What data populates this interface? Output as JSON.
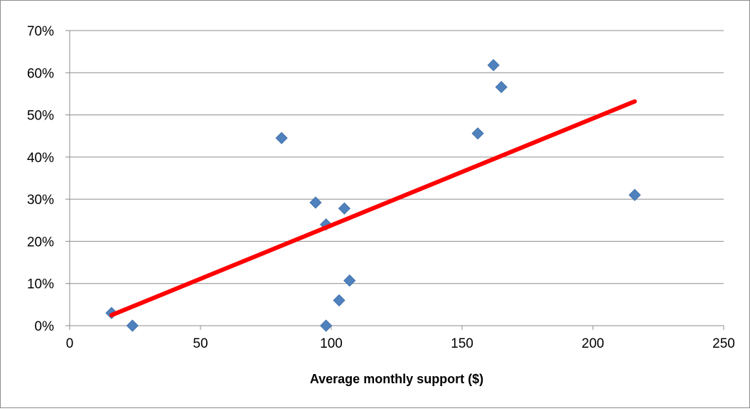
{
  "chart_data": {
    "type": "scatter",
    "xlabel": "Average monthly support ($)",
    "ylabel": "",
    "xlim": [
      0,
      250
    ],
    "ylim": [
      0,
      0.7
    ],
    "x_ticks": [
      0,
      50,
      100,
      150,
      200,
      250
    ],
    "x_tick_labels": [
      "0",
      "50",
      "100",
      "150",
      "200",
      "250"
    ],
    "y_ticks": [
      0,
      0.1,
      0.2,
      0.3,
      0.4,
      0.5,
      0.6,
      0.7
    ],
    "y_tick_labels": [
      "0%",
      "10%",
      "20%",
      "30%",
      "40%",
      "50%",
      "60%",
      "70%"
    ],
    "grid": "horizontal",
    "legend": "none",
    "series": [
      {
        "marker": "diamond",
        "color": "#4f81bd",
        "points": [
          {
            "x": 16,
            "y": 0.03
          },
          {
            "x": 24,
            "y": 0.0
          },
          {
            "x": 81,
            "y": 0.445
          },
          {
            "x": 94,
            "y": 0.292
          },
          {
            "x": 98,
            "y": 0.24
          },
          {
            "x": 98,
            "y": 0.0
          },
          {
            "x": 103,
            "y": 0.06
          },
          {
            "x": 105,
            "y": 0.278
          },
          {
            "x": 107,
            "y": 0.107
          },
          {
            "x": 156,
            "y": 0.456
          },
          {
            "x": 162,
            "y": 0.618
          },
          {
            "x": 165,
            "y": 0.566
          },
          {
            "x": 216,
            "y": 0.31
          }
        ]
      }
    ],
    "trendline": {
      "color": "#ff0000",
      "from": {
        "x": 16,
        "y": 0.025
      },
      "to": {
        "x": 216,
        "y": 0.532
      }
    }
  }
}
